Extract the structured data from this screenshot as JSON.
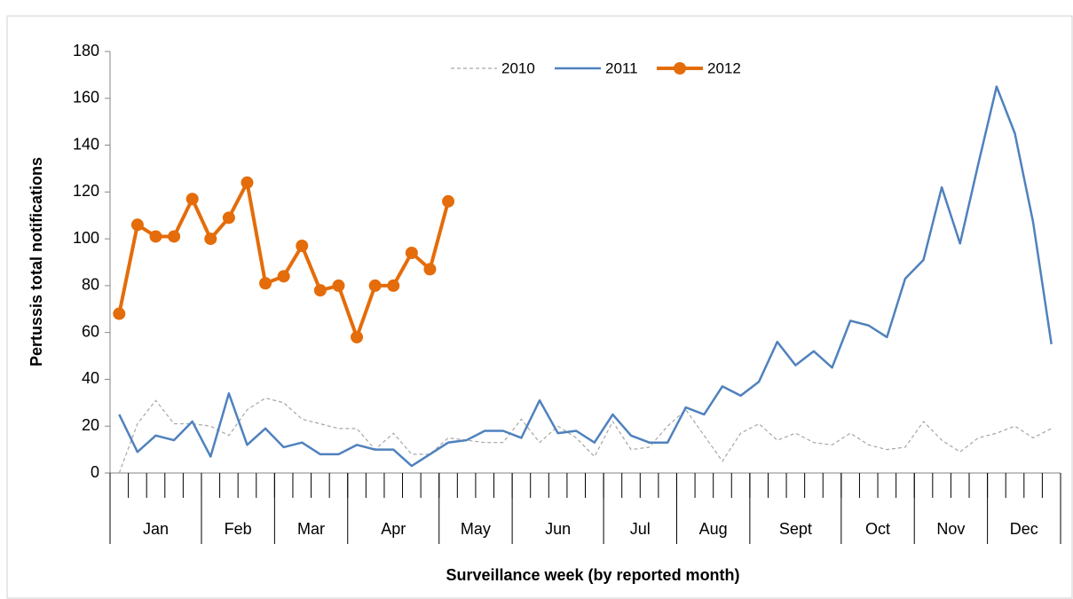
{
  "chart_data": {
    "type": "line",
    "x_label": "Surveillance week (by reported month)",
    "y_label": "Pertussis total notifications",
    "ylim": [
      0,
      180
    ],
    "yticks": [
      0,
      20,
      40,
      60,
      80,
      100,
      120,
      140,
      160,
      180
    ],
    "grid": false,
    "legend": "top",
    "month_groups": [
      {
        "label": "Jan",
        "weeks": 5
      },
      {
        "label": "Feb",
        "weeks": 4
      },
      {
        "label": "Mar",
        "weeks": 4
      },
      {
        "label": "Apr",
        "weeks": 5
      },
      {
        "label": "May",
        "weeks": 4
      },
      {
        "label": "Jun",
        "weeks": 5
      },
      {
        "label": "Jul",
        "weeks": 4
      },
      {
        "label": "Aug",
        "weeks": 4
      },
      {
        "label": "Sept",
        "weeks": 5
      },
      {
        "label": "Oct",
        "weeks": 4
      },
      {
        "label": "Nov",
        "weeks": 4
      },
      {
        "label": "Dec",
        "weeks": 4
      }
    ],
    "series": [
      {
        "name": "2010",
        "color": "#a6a6a6",
        "style": "dashed",
        "values": [
          0,
          21,
          31,
          21,
          21,
          20,
          16,
          27,
          32,
          30,
          23,
          21,
          19,
          19,
          10,
          17,
          8,
          8,
          15,
          14,
          13,
          13,
          23,
          13,
          20,
          15,
          7,
          22,
          10,
          11,
          20,
          27,
          16,
          5,
          17,
          21,
          14,
          17,
          13,
          12,
          17,
          12,
          10,
          11,
          22,
          14,
          9,
          15,
          17,
          20,
          15,
          19
        ]
      },
      {
        "name": "2011",
        "color": "#4f81bd",
        "style": "solid",
        "values": [
          25,
          9,
          16,
          14,
          22,
          7,
          34,
          12,
          19,
          11,
          13,
          8,
          8,
          12,
          10,
          10,
          3,
          8,
          13,
          14,
          18,
          18,
          15,
          31,
          17,
          18,
          13,
          25,
          16,
          13,
          13,
          28,
          25,
          37,
          33,
          39,
          56,
          46,
          52,
          45,
          65,
          63,
          58,
          83,
          91,
          122,
          98,
          132,
          165,
          145,
          107,
          55
        ]
      },
      {
        "name": "2012",
        "color": "#e46c0a",
        "style": "markers",
        "values": [
          68,
          106,
          101,
          101,
          117,
          100,
          109,
          124,
          81,
          84,
          97,
          78,
          80,
          58,
          80,
          80,
          94,
          87,
          116
        ]
      }
    ]
  }
}
